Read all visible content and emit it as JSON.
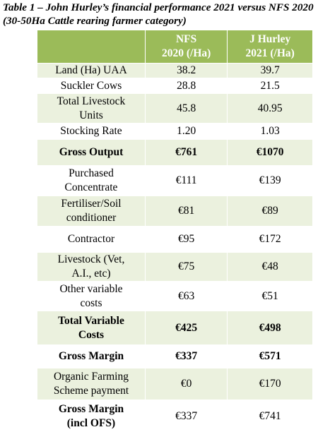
{
  "caption": "Table 1 – John Hurley’s financial performance 2021 versus NFS 2020 (30-50Ha Cattle rearing farmer category)",
  "table": {
    "header": [
      [
        "NFS",
        "2020 (/Ha)"
      ],
      [
        "J Hurley",
        "2021 (/Ha)"
      ]
    ],
    "rows": [
      [
        "Land (Ha) UAA",
        "38.2",
        "39.7"
      ],
      [
        "Suckler Cows",
        "28.8",
        "21.5"
      ],
      [
        "Total Livestock Units",
        "45.8",
        "40.95"
      ],
      [
        "Stocking Rate",
        "1.20",
        "1.03"
      ],
      [
        "Gross Output",
        "€761",
        "€1070"
      ],
      [
        "Purchased Concentrate",
        "€111",
        "€139"
      ],
      [
        "Fertiliser/Soil conditioner",
        "€81",
        "€89"
      ],
      [
        "Contractor",
        "€95",
        "€172"
      ],
      [
        "Livestock (Vet, A.I., etc)",
        "€75",
        "€48"
      ],
      [
        "Other variable costs",
        "€63",
        "€51"
      ],
      [
        "Total Variable Costs",
        "€425",
        "€498"
      ],
      [
        "Gross Margin",
        "€337",
        "€571"
      ],
      [
        "Organic Farming Scheme payment",
        "€0",
        "€170"
      ],
      [
        "Gross Margin (incl OFS)",
        "€337",
        "€741"
      ]
    ]
  }
}
